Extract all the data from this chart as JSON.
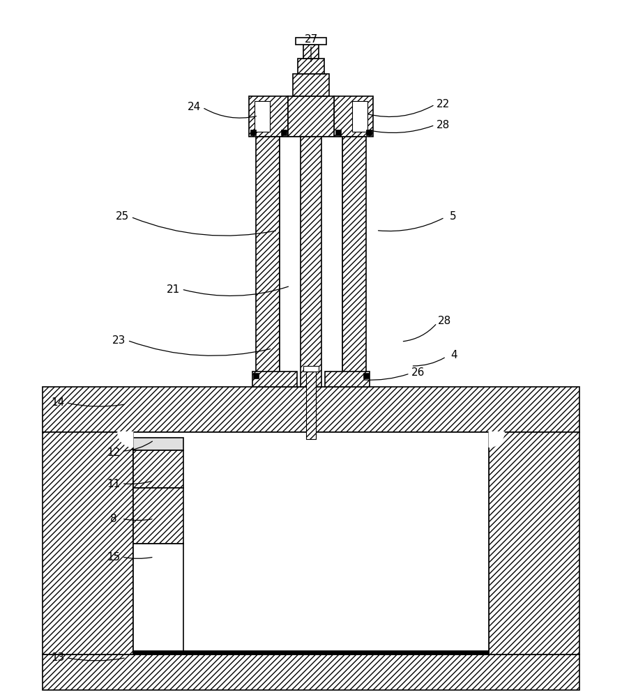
{
  "bg_color": "#ffffff",
  "fig_width": 8.92,
  "fig_height": 10.0,
  "dpi": 100
}
